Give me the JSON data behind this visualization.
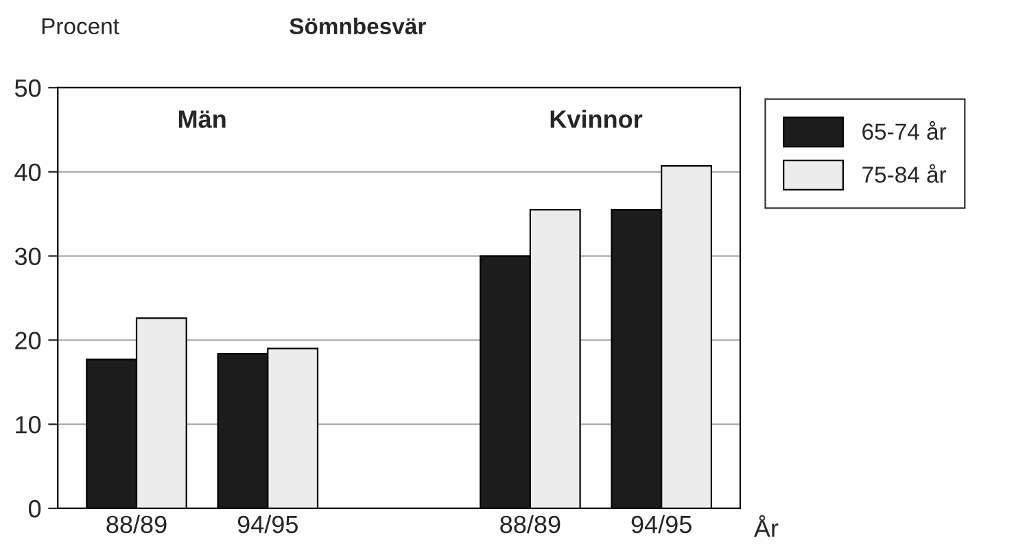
{
  "chart_data": {
    "type": "bar",
    "title": "Sömnbesvär",
    "ylabel": "Procent",
    "xlabel": "År",
    "categories": [
      "88/89",
      "94/95",
      null,
      "88/89",
      "94/95"
    ],
    "series": [
      {
        "name": "65-74 år",
        "color": "#1c1c1c",
        "values": [
          17.7,
          18.4,
          null,
          30.0,
          35.5
        ]
      },
      {
        "name": "75-84 år",
        "color": "#ececec",
        "values": [
          22.6,
          19.0,
          null,
          35.5,
          40.7
        ]
      }
    ],
    "annotations": [
      "Män",
      "Kvinnor"
    ],
    "ylim": [
      0,
      50
    ],
    "yticks": [
      0,
      10,
      20,
      30,
      40,
      50
    ],
    "grid": "y",
    "legend": "top right"
  }
}
